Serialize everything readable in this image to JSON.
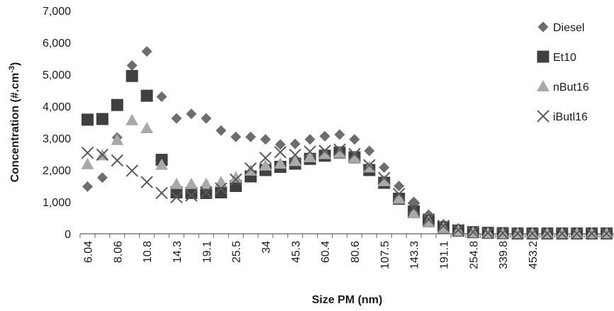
{
  "chart_data": {
    "type": "scatter",
    "xlabel": "Size PM (nm)",
    "ylabel": "Concentration (#.cm",
    "ylabel_superscript": "-3",
    "ylabel_close": ")",
    "ylim": [
      0,
      7000
    ],
    "y_ticks": [
      "0",
      "1,000",
      "2,000",
      "3,000",
      "4,000",
      "5,000",
      "6,000",
      "7,000"
    ],
    "x_tick_labels": [
      "6.04",
      "8.06",
      "10.8",
      "14.3",
      "19.1",
      "25.5",
      "34",
      "45.3",
      "60.4",
      "80.6",
      "107.5",
      "143.3",
      "191.1",
      "254.8",
      "339.8",
      "453.2"
    ],
    "legend_position": "right",
    "grid": false,
    "series": [
      {
        "name": "Diesel",
        "marker": "diamond",
        "color": "#6d6d6d",
        "values": [
          1480,
          1760,
          3020,
          5280,
          5720,
          4300,
          3620,
          3760,
          3620,
          3240,
          3040,
          3040,
          2960,
          2800,
          2820,
          2960,
          3060,
          3110,
          2960,
          2600,
          2080,
          1500,
          1000,
          600,
          300,
          170,
          80,
          40,
          30,
          20,
          20,
          20,
          20,
          20,
          20,
          20
        ]
      },
      {
        "name": "Et10",
        "marker": "square",
        "color": "#404040",
        "values": [
          3580,
          3600,
          4040,
          4950,
          4330,
          2320,
          1300,
          1280,
          1280,
          1300,
          1500,
          1800,
          2000,
          2100,
          2200,
          2350,
          2450,
          2550,
          2400,
          2000,
          1600,
          1100,
          700,
          400,
          200,
          100,
          50,
          30,
          20,
          10,
          10,
          10,
          10,
          10,
          10,
          10
        ]
      },
      {
        "name": "nBut16",
        "marker": "triangle",
        "color": "#a9a9a9",
        "values": [
          2180,
          2460,
          2940,
          3560,
          3310,
          2160,
          1560,
          1560,
          1560,
          1620,
          1760,
          1980,
          2140,
          2200,
          2280,
          2400,
          2500,
          2540,
          2380,
          2080,
          1650,
          1100,
          640,
          380,
          180,
          90,
          40,
          20,
          10,
          10,
          10,
          10,
          10,
          10,
          10,
          10
        ]
      },
      {
        "name": "iButl16",
        "marker": "x",
        "color": "#5a5a5a",
        "values": [
          2540,
          2480,
          2300,
          1980,
          1620,
          1280,
          1150,
          1200,
          1300,
          1420,
          1700,
          2050,
          2380,
          2560,
          2480,
          2580,
          2600,
          2640,
          2500,
          2150,
          1750,
          1250,
          800,
          450,
          250,
          120,
          60,
          30,
          20,
          10,
          10,
          10,
          10,
          10,
          10,
          10
        ]
      }
    ]
  }
}
